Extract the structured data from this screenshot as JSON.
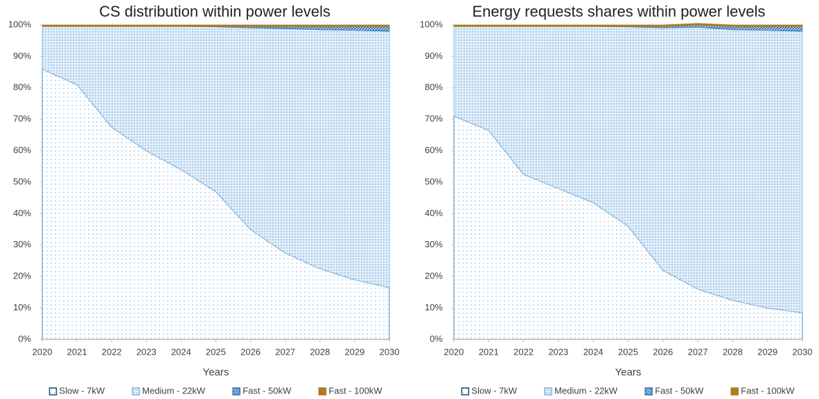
{
  "chart_data": [
    {
      "type": "area",
      "title": "CS distribution within power levels",
      "x_label": "Years",
      "x": [
        2020,
        2021,
        2022,
        2023,
        2024,
        2025,
        2026,
        2027,
        2028,
        2029,
        2030
      ],
      "xlim": [
        2020,
        2030
      ],
      "xticks": [
        2020,
        2021,
        2022,
        2023,
        2024,
        2025,
        2026,
        2027,
        2028,
        2029,
        2030
      ],
      "ylim": [
        0,
        100
      ],
      "yticks": [
        {
          "value": 0,
          "label": "0%"
        },
        {
          "value": 10,
          "label": "10%"
        },
        {
          "value": 20,
          "label": "20%"
        },
        {
          "value": 30,
          "label": "30%"
        },
        {
          "value": 40,
          "label": "40%"
        },
        {
          "value": 50,
          "label": "50%"
        },
        {
          "value": 60,
          "label": "60%"
        },
        {
          "value": 70,
          "label": "70%"
        },
        {
          "value": 80,
          "label": "80%"
        },
        {
          "value": 90,
          "label": "90%"
        },
        {
          "value": 100,
          "label": "100%"
        }
      ],
      "stacked": true,
      "legend": "bottom",
      "series": [
        {
          "name": "Slow - 7kW",
          "color": "#1f4e79",
          "values": [
            86,
            81,
            67.5,
            60,
            54,
            47,
            35,
            27.5,
            22.5,
            19,
            16.5
          ]
        },
        {
          "name": "Medium - 22kW",
          "color": "#7fb2dc",
          "values": [
            13.5,
            18.5,
            32,
            39.5,
            45.5,
            52.4,
            64.1,
            71.3,
            76,
            79.3,
            81.5
          ]
        },
        {
          "name": "Fast - 50kW",
          "color": "#2e75b6",
          "values": [
            0,
            0,
            0,
            0,
            0,
            0.1,
            0.4,
            0.7,
            1,
            1.2,
            1.5
          ]
        },
        {
          "name": "Fast - 100kW",
          "color": "#b07a1f",
          "values": [
            0.5,
            0.5,
            0.5,
            0.5,
            0.5,
            0.5,
            0.5,
            0.5,
            0.5,
            0.5,
            0.5
          ]
        }
      ]
    },
    {
      "type": "area",
      "title": "Energy requests shares within power levels",
      "x_label": "Years",
      "x": [
        2020,
        2021,
        2022,
        2023,
        2024,
        2025,
        2026,
        2027,
        2028,
        2029,
        2030
      ],
      "xlim": [
        2020,
        2030
      ],
      "xticks": [
        2020,
        2021,
        2022,
        2023,
        2024,
        2025,
        2026,
        2027,
        2028,
        2029,
        2030
      ],
      "ylim": [
        0,
        100
      ],
      "yticks": [
        {
          "value": 0,
          "label": "0%"
        },
        {
          "value": 10,
          "label": "10%"
        },
        {
          "value": 20,
          "label": "20%"
        },
        {
          "value": 30,
          "label": "30%"
        },
        {
          "value": 40,
          "label": "40%"
        },
        {
          "value": 50,
          "label": "50%"
        },
        {
          "value": 60,
          "label": "60%"
        },
        {
          "value": 70,
          "label": "70%"
        },
        {
          "value": 80,
          "label": "80%"
        },
        {
          "value": 90,
          "label": "90%"
        },
        {
          "value": 100,
          "label": "100%"
        }
      ],
      "stacked": true,
      "legend": "bottom",
      "series": [
        {
          "name": "Slow - 7kW",
          "color": "#1f4e79",
          "values": [
            71,
            66.5,
            52.5,
            48,
            43.5,
            36,
            22,
            16,
            12.5,
            10,
            8.5
          ]
        },
        {
          "name": "Medium - 22kW",
          "color": "#7fb2dc",
          "values": [
            28.5,
            33,
            47,
            51.5,
            56,
            63.4,
            77.1,
            83.3,
            86,
            88.3,
            89.5
          ]
        },
        {
          "name": "Fast - 50kW",
          "color": "#2e75b6",
          "values": [
            0,
            0,
            0,
            0,
            0,
            0.1,
            0.4,
            0.7,
            1,
            1.2,
            1.5
          ]
        },
        {
          "name": "Fast - 100kW",
          "color": "#b07a1f",
          "values": [
            0.5,
            0.5,
            0.5,
            0.5,
            0.5,
            0.5,
            0.5,
            0.5,
            0.5,
            0.5,
            0.5
          ]
        }
      ]
    }
  ]
}
